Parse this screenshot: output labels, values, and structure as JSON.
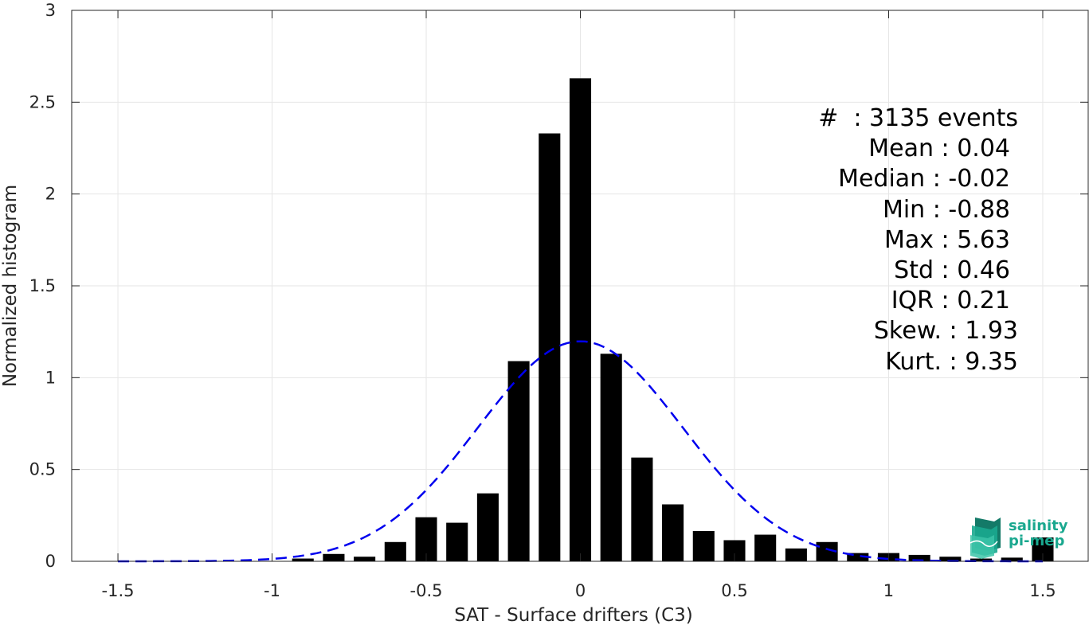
{
  "chart_data": {
    "type": "bar",
    "title": "",
    "xlabel": "SAT - Surface drifters (C3)",
    "ylabel": "Normalized histogram",
    "xlim": [
      -1.65,
      1.65
    ],
    "ylim": [
      0,
      3
    ],
    "grid": true,
    "x_ticks": [
      -1.5,
      -1,
      -0.5,
      0,
      0.5,
      1,
      1.5
    ],
    "x_tick_labels": [
      "-1.5",
      "-1",
      "-0.5",
      "0",
      "0.5",
      "1",
      "1.5"
    ],
    "y_ticks": [
      0,
      0.5,
      1,
      1.5,
      2,
      2.5,
      3
    ],
    "y_tick_labels": [
      "0",
      "0.5",
      "1",
      "1.5",
      "2",
      "2.5",
      "3"
    ],
    "bar_width": 0.07,
    "bar_color": "#000000",
    "histogram": {
      "centers": [
        -0.9,
        -0.8,
        -0.7,
        -0.6,
        -0.5,
        -0.4,
        -0.3,
        -0.2,
        -0.1,
        0.0,
        0.1,
        0.2,
        0.3,
        0.4,
        0.5,
        0.6,
        0.7,
        0.8,
        0.9,
        1.0,
        1.1,
        1.2,
        1.3,
        1.4,
        1.5
      ],
      "values": [
        0.015,
        0.04,
        0.025,
        0.105,
        0.24,
        0.21,
        0.37,
        1.09,
        2.33,
        2.63,
        1.13,
        0.565,
        0.31,
        0.165,
        0.115,
        0.145,
        0.07,
        0.105,
        0.045,
        0.045,
        0.035,
        0.025,
        0.015,
        0.02,
        0.13
      ]
    },
    "fit_curve": {
      "name": "",
      "style": "dashed",
      "color": "#0000ee",
      "mean": 0.0,
      "std": 0.333,
      "x_range": [
        -1.5,
        1.5
      ]
    },
    "annotation_lines": [
      "#  : 3135 events",
      "Mean : 0.04",
      "Median : -0.02",
      "Min : -0.88",
      "Max : 5.63",
      "Std : 0.46",
      "IQR : 0.21",
      "Skew. : 1.93",
      "Kurt. : 9.35"
    ]
  },
  "logo": {
    "icon": "salinity-pimep-logo-icon",
    "line1": "salinity",
    "line2": "pi-mep",
    "colors": [
      "#1aa88f",
      "#3cc4a8",
      "#147a68"
    ]
  }
}
